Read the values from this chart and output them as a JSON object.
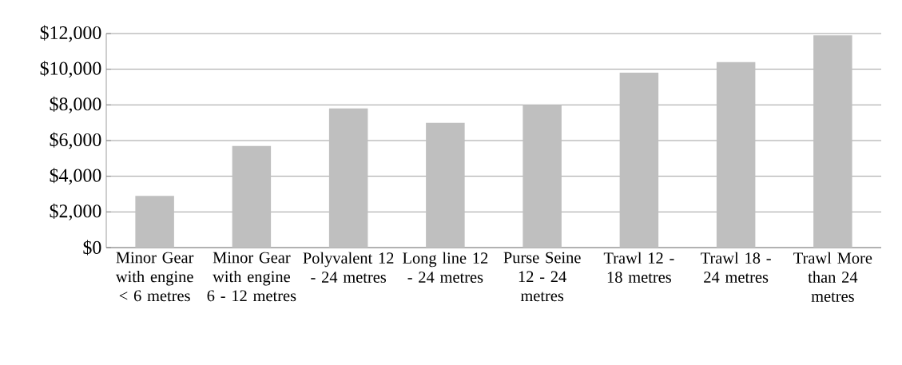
{
  "chart_data": {
    "type": "bar",
    "categories": [
      "Minor Gear with engine < 6 metres",
      "Minor Gear with engine 6 - 12 metres",
      "Polyvalent 12 - 24 metres",
      "Long line 12 - 24 metres",
      "Purse Seine 12 - 24 metres",
      "Trawl 12 - 18 metres",
      "Trawl 18 - 24 metres",
      "Trawl More than 24 metres"
    ],
    "values": [
      2900,
      5700,
      7800,
      7000,
      8000,
      9800,
      10400,
      11900
    ],
    "color": "#bfbfbf",
    "ylim": [
      0,
      12000
    ],
    "yticks": [
      {
        "value": 0,
        "label": "$0"
      },
      {
        "value": 2000,
        "label": "$2,000"
      },
      {
        "value": 4000,
        "label": "$4,000"
      },
      {
        "value": 6000,
        "label": "$6,000"
      },
      {
        "value": 8000,
        "label": "$8,000"
      },
      {
        "value": 10000,
        "label": "$10,000"
      },
      {
        "value": 12000,
        "label": "$12,000"
      }
    ],
    "grid": "y"
  }
}
